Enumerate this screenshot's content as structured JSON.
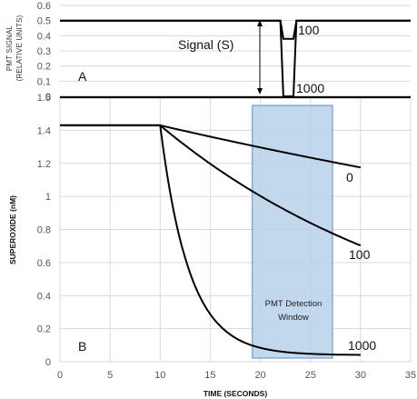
{
  "colors": {
    "line": "#000000",
    "grid": "#d9d9d9",
    "window_fill": "#b7d1ea",
    "window_stroke": "#5b8ec9"
  },
  "chart_data": [
    {
      "panel": "A",
      "type": "line",
      "ylabel": [
        "PMT SIGNAL",
        "(RELATIVE UNITS)"
      ],
      "ylim": [
        0,
        0.6
      ],
      "yticks": [
        "0",
        "0.1",
        "0.2",
        "0.3",
        "0.4",
        "0.5",
        "0.6"
      ],
      "grid": true,
      "panel_label": "A",
      "annotation": "Signal (S)",
      "series": [
        {
          "name": "100",
          "x": [
            0,
            22,
            22.3,
            23.3,
            23.6,
            35
          ],
          "y": [
            0.5,
            0.5,
            0.38,
            0.38,
            0.5,
            0.5
          ]
        },
        {
          "name": "1000",
          "x": [
            0,
            22,
            22.3,
            23.3,
            23.6,
            35
          ],
          "y": [
            0.5,
            0.5,
            0.0,
            0.0,
            0.5,
            0.5
          ]
        }
      ]
    },
    {
      "panel": "B",
      "type": "line",
      "xlabel": "TIME (SECONDS)",
      "ylabel": "SUPEROXIDE (nM)",
      "xlim": [
        0,
        35
      ],
      "ylim": [
        0,
        1.6
      ],
      "xticks": [
        "0",
        "5",
        "10",
        "15",
        "20",
        "25",
        "30",
        "35"
      ],
      "yticks": [
        "0",
        "0.2",
        "0.4",
        "0.6",
        "0.8",
        "1",
        "1.2",
        "1.4",
        "1.6"
      ],
      "grid": true,
      "panel_label": "B",
      "window": {
        "label": [
          "PMT Detection",
          "Window"
        ],
        "x": [
          19.2,
          27.2
        ]
      },
      "initial_value": 1.43,
      "start_time": 10,
      "series": [
        {
          "name": "0",
          "decay_rate": 0.0098,
          "end_x": 30
        },
        {
          "name": "100",
          "decay_rate": 0.0355,
          "end_x": 30
        },
        {
          "name": "1000",
          "decay_rate": 0.345,
          "end_x": 30,
          "baseline": 0.04
        }
      ]
    }
  ]
}
